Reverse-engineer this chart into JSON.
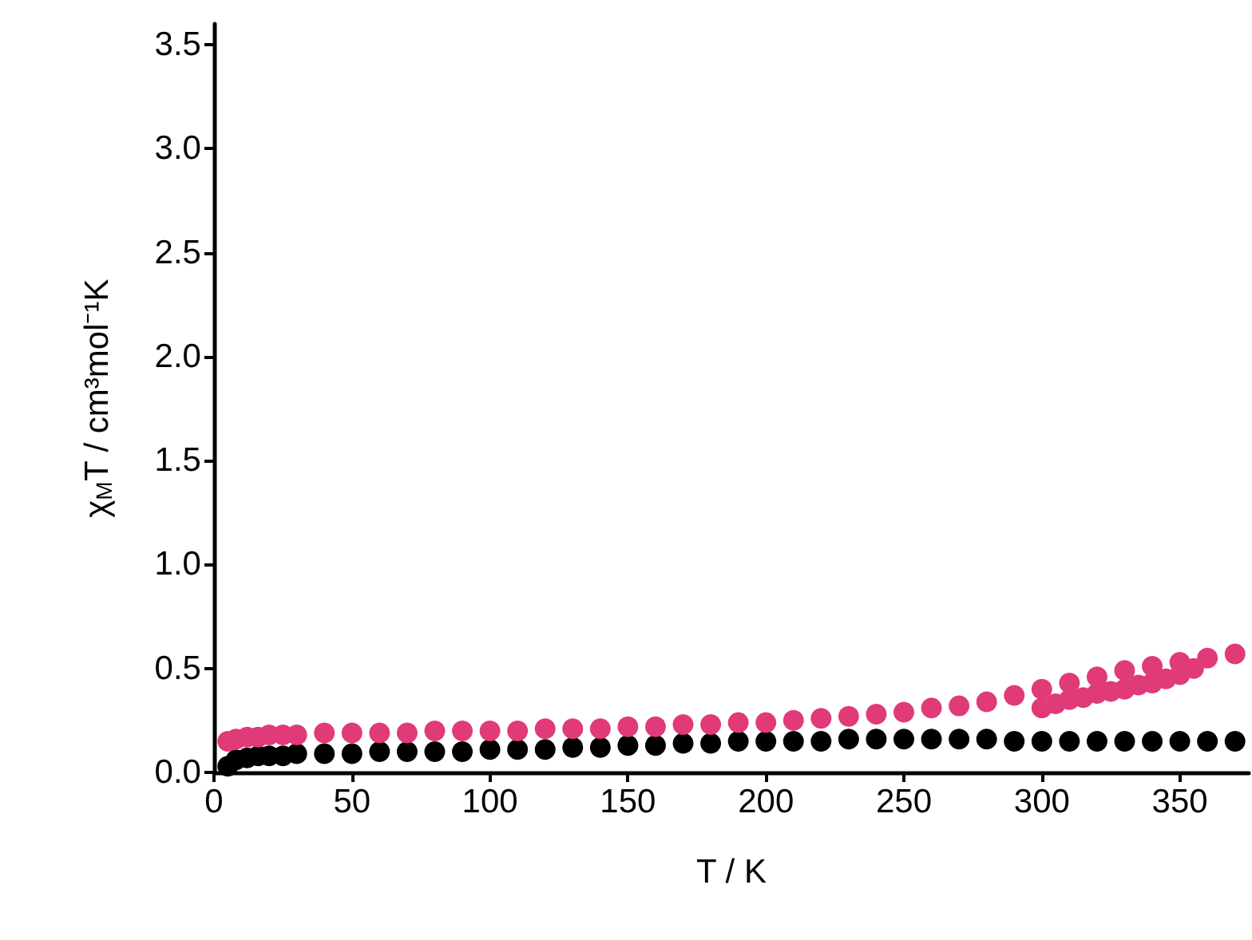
{
  "chart_data": {
    "type": "scatter",
    "xlabel": "T / K",
    "ylabel": "χ$_{M}$T / cm³mol⁻¹K",
    "xlim": [
      0,
      375
    ],
    "xticks": [
      0,
      50,
      100,
      150,
      200,
      250,
      300,
      350
    ],
    "ylim": [
      0,
      3.6
    ],
    "yticks": [
      {
        "value": 0,
        "label": "0.0"
      },
      {
        "value": 0.5,
        "label": "0.5"
      },
      {
        "value": 1,
        "label": "1.0"
      },
      {
        "value": 1.5,
        "label": "1.5"
      },
      {
        "value": 2,
        "label": "2.0"
      },
      {
        "value": 2.5,
        "label": "2.5"
      },
      {
        "value": 3,
        "label": "3.0"
      },
      {
        "value": 3.5,
        "label": "3.5"
      }
    ],
    "grid": false,
    "marker": "circle",
    "series": [
      {
        "color": "#000000",
        "x": [
          5,
          8,
          12,
          16,
          20,
          25,
          30,
          40,
          50,
          60,
          70,
          80,
          90,
          100,
          110,
          120,
          130,
          140,
          150,
          160,
          170,
          180,
          190,
          200,
          210,
          220,
          230,
          240,
          250,
          260,
          270,
          280,
          290,
          300,
          310,
          320,
          330,
          340,
          350,
          360,
          370
        ],
        "values": [
          0.03,
          0.06,
          0.07,
          0.08,
          0.08,
          0.08,
          0.09,
          0.09,
          0.09,
          0.1,
          0.1,
          0.1,
          0.1,
          0.11,
          0.11,
          0.11,
          0.12,
          0.12,
          0.13,
          0.13,
          0.14,
          0.14,
          0.15,
          0.15,
          0.15,
          0.15,
          0.16,
          0.16,
          0.16,
          0.16,
          0.16,
          0.16,
          0.15,
          0.15,
          0.15,
          0.15,
          0.15,
          0.15,
          0.15,
          0.15,
          0.15
        ]
      },
      {
        "color": "#e03a78",
        "x": [
          5,
          8,
          12,
          16,
          20,
          25,
          30,
          40,
          50,
          60,
          70,
          80,
          90,
          100,
          110,
          120,
          130,
          140,
          150,
          160,
          170,
          180,
          190,
          200,
          210,
          220,
          230,
          240,
          250,
          260,
          270,
          280,
          290,
          300,
          310,
          320,
          330,
          340,
          350,
          360,
          370,
          300,
          305,
          310,
          315,
          320,
          325,
          330,
          335,
          340,
          345,
          350,
          355
        ],
        "values": [
          0.15,
          0.16,
          0.17,
          0.17,
          0.18,
          0.18,
          0.18,
          0.19,
          0.19,
          0.19,
          0.19,
          0.2,
          0.2,
          0.2,
          0.2,
          0.21,
          0.21,
          0.21,
          0.22,
          0.22,
          0.23,
          0.23,
          0.24,
          0.24,
          0.25,
          0.26,
          0.27,
          0.28,
          0.29,
          0.31,
          0.32,
          0.34,
          0.37,
          0.4,
          0.43,
          0.46,
          0.49,
          0.51,
          0.53,
          0.55,
          0.57,
          0.31,
          0.33,
          0.35,
          0.36,
          0.38,
          0.39,
          0.4,
          0.42,
          0.43,
          0.45,
          0.47,
          0.5
        ]
      }
    ]
  }
}
